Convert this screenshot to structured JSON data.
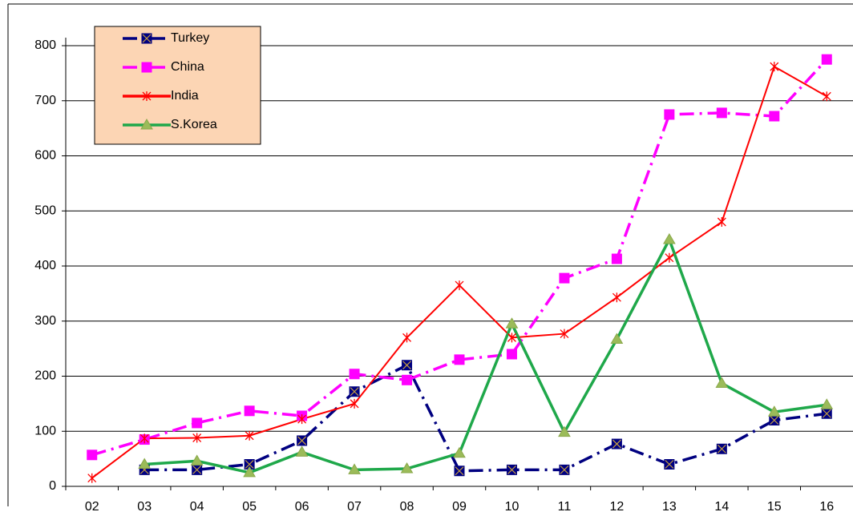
{
  "chart_data": {
    "type": "line",
    "categories": [
      "02",
      "03",
      "04",
      "05",
      "06",
      "07",
      "08",
      "09",
      "10",
      "11",
      "12",
      "13",
      "14",
      "15",
      "16"
    ],
    "series": [
      {
        "name": "Turkey",
        "color": "#000080",
        "marker": "square-x",
        "line_style": "dashdot",
        "values": [
          null,
          30,
          30,
          40,
          83,
          172,
          220,
          28,
          30,
          30,
          77,
          40,
          68,
          120,
          132
        ]
      },
      {
        "name": "China",
        "color": "#ff00ff",
        "marker": "square",
        "line_style": "dashdot",
        "values": [
          57,
          85,
          115,
          137,
          128,
          204,
          193,
          230,
          240,
          378,
          413,
          675,
          678,
          672,
          775
        ]
      },
      {
        "name": "India",
        "color": "#ff0000",
        "marker": "star",
        "line_style": "solid",
        "values": [
          15,
          87,
          88,
          92,
          122,
          150,
          270,
          365,
          270,
          277,
          343,
          415,
          480,
          762,
          708
        ]
      },
      {
        "name": "S.Korea",
        "color": "#1fa84a",
        "marker": "triangle",
        "line_style": "solid",
        "values": [
          null,
          40,
          46,
          25,
          62,
          30,
          32,
          60,
          295,
          98,
          267,
          448,
          187,
          135,
          148
        ]
      }
    ],
    "ylim": [
      0,
      800
    ],
    "yticks": [
      0,
      100,
      200,
      300,
      400,
      500,
      600,
      700,
      800
    ],
    "grid": true,
    "legend": "upper left"
  }
}
